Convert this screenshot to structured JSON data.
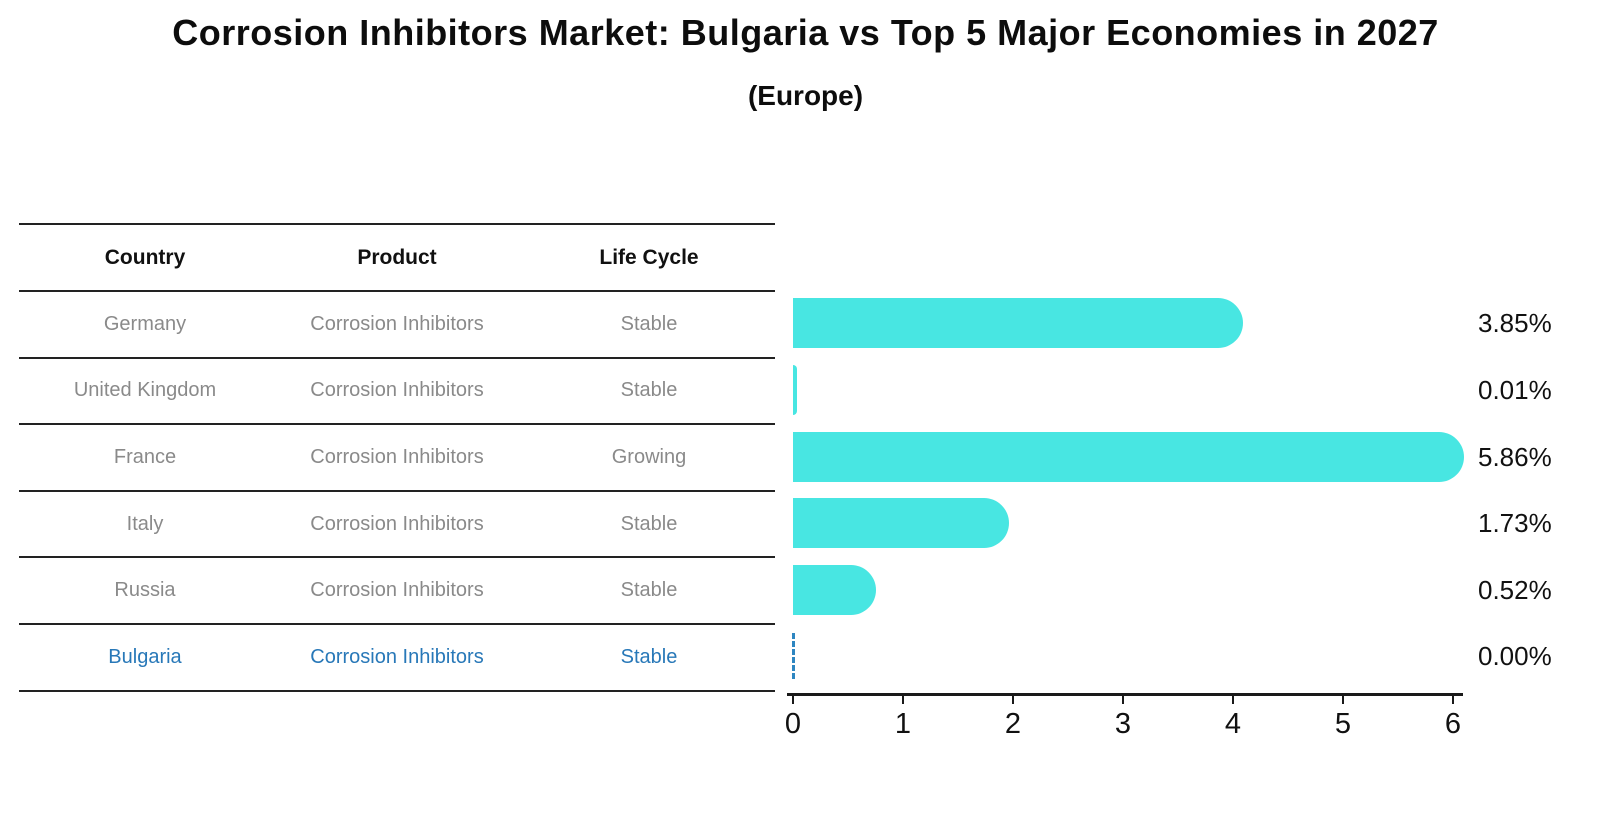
{
  "header": {
    "title": "Corrosion Inhibitors Market: Bulgaria vs Top 5 Major Economies in 2027",
    "subtitle": "(Europe)"
  },
  "table": {
    "headers": [
      "Country",
      "Product",
      "Life Cycle"
    ],
    "rows": [
      {
        "country": "Germany",
        "product": "Corrosion Inhibitors",
        "life_cycle": "Stable",
        "highlight": false
      },
      {
        "country": "United Kingdom",
        "product": "Corrosion Inhibitors",
        "life_cycle": "Stable",
        "highlight": false
      },
      {
        "country": "France",
        "product": "Corrosion Inhibitors",
        "life_cycle": "Growing",
        "highlight": false
      },
      {
        "country": "Italy",
        "product": "Corrosion Inhibitors",
        "life_cycle": "Stable",
        "highlight": false
      },
      {
        "country": "Russia",
        "product": "Corrosion Inhibitors",
        "life_cycle": "Stable",
        "highlight": false
      },
      {
        "country": "Bulgaria",
        "product": "Corrosion Inhibitors",
        "life_cycle": "Stable",
        "highlight": true
      }
    ]
  },
  "chart_data": {
    "type": "bar",
    "orientation": "horizontal",
    "title": "Corrosion Inhibitors Market: Bulgaria vs Top 5 Major Economies in 2027",
    "subtitle": "(Europe)",
    "categories": [
      "Germany",
      "United Kingdom",
      "France",
      "Italy",
      "Russia",
      "Bulgaria"
    ],
    "values": [
      3.85,
      0.01,
      5.86,
      1.73,
      0.52,
      0.0
    ],
    "value_labels": [
      "3.85%",
      "0.01%",
      "5.86%",
      "1.73%",
      "0.52%",
      "0.00%"
    ],
    "xlabel": "",
    "ylabel": "",
    "xlim": [
      0,
      6.2
    ],
    "xticks": [
      0,
      1,
      2,
      3,
      4,
      5,
      6
    ],
    "grid": false,
    "legend": "none",
    "bar_color": "#48e6e2",
    "highlight_index": 5,
    "highlight_style": "dashed-zero-line",
    "highlight_color": "#2e86c1"
  },
  "colors": {
    "text_primary": "#111111",
    "text_muted": "#8a8a8a",
    "accent_blue": "#2878b8",
    "axis": "#1a1a1a"
  }
}
